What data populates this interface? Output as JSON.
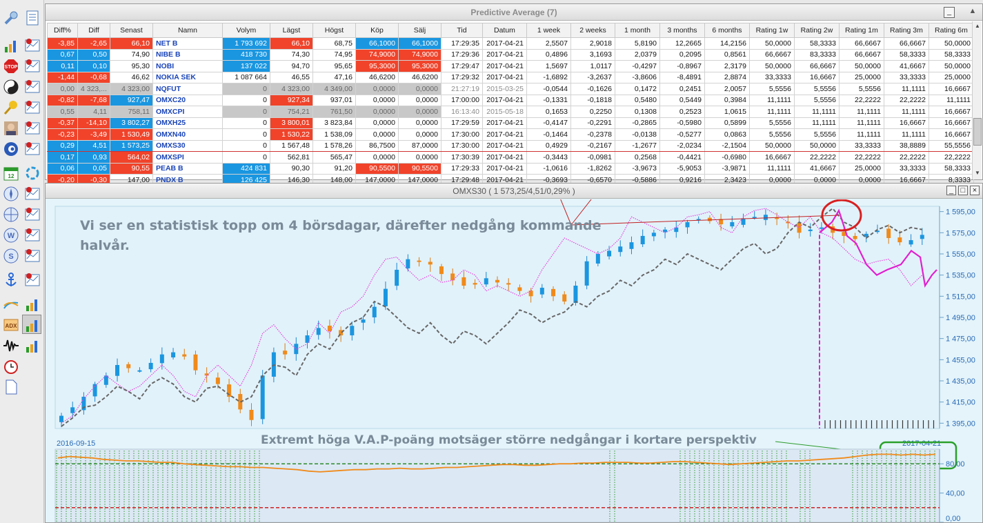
{
  "grid": {
    "title": "Predictive Average (7)",
    "columns": [
      "Diff%",
      "Diff",
      "Senast",
      "Namn",
      "Volym",
      "Lägst",
      "Högst",
      "Köp",
      "Sälj",
      "Tid",
      "Datum",
      "1 week",
      "2 weeks",
      "1 month",
      "3 months",
      "6 months",
      "Rating 1w",
      "Rating 2w",
      "Rating 1m",
      "Rating 3m",
      "Rating 6m"
    ],
    "rows": [
      [
        "-3,85",
        "-2,65",
        "66,10",
        "NET B",
        "1 793 692",
        "66,10",
        "68,75",
        "66,1000",
        "66,1000",
        "17:29:35",
        "2017-04-21",
        "2,5507",
        "2,9018",
        "5,8190",
        "12,2665",
        "14,2156",
        "50,0000",
        "58,3333",
        "66,6667",
        "66,6667",
        "50,0000"
      ],
      [
        "0,67",
        "0,50",
        "74,90",
        "NIBE B",
        "418 730",
        "74,30",
        "74,95",
        "74,9000",
        "74,9000",
        "17:29:36",
        "2017-04-21",
        "0,4896",
        "3,1693",
        "2,0379",
        "0,2095",
        "0,8561",
        "66,6667",
        "83,3333",
        "66,6667",
        "58,3333",
        "58,3333"
      ],
      [
        "0,11",
        "0,10",
        "95,30",
        "NOBI",
        "137 022",
        "94,70",
        "95,65",
        "95,3000",
        "95,3000",
        "17:29:47",
        "2017-04-21",
        "1,5697",
        "1,0117",
        "-0,4297",
        "-0,8967",
        "2,3179",
        "50,0000",
        "66,6667",
        "50,0000",
        "41,6667",
        "50,0000"
      ],
      [
        "-1,44",
        "-0,68",
        "46,62",
        "NOKIA SEK",
        "1 087 664",
        "46,55",
        "47,16",
        "46,6200",
        "46,6200",
        "17:29:32",
        "2017-04-21",
        "-1,6892",
        "-3,2637",
        "-3,8606",
        "-8,4891",
        "2,8874",
        "33,3333",
        "16,6667",
        "25,0000",
        "33,3333",
        "25,0000"
      ],
      [
        "0,00",
        "4 323,...",
        "4 323,00",
        "NQFUT",
        "0",
        "4 323,00",
        "4 349,00",
        "0,0000",
        "0,0000",
        "21:27:19",
        "2015-03-25",
        "-0,0544",
        "-0,1626",
        "0,1472",
        "0,2451",
        "2,0057",
        "5,5556",
        "5,5556",
        "5,5556",
        "11,1111",
        "16,6667"
      ],
      [
        "-0,82",
        "-7,68",
        "927,47",
        "OMXC20",
        "0",
        "927,34",
        "937,01",
        "0,0000",
        "0,0000",
        "17:00:00",
        "2017-04-21",
        "-0,1331",
        "-0,1818",
        "0,5480",
        "0,5449",
        "0,3984",
        "11,1111",
        "5,5556",
        "22,2222",
        "22,2222",
        "11,1111"
      ],
      [
        "0,55",
        "4,11",
        "758,11",
        "OMXCPI",
        "0",
        "754,21",
        "761,50",
        "0,0000",
        "0,0000",
        "16:13:40",
        "2015-05-18",
        "0,1653",
        "0,2250",
        "0,1308",
        "0,2523",
        "1,0615",
        "11,1111",
        "11,1111",
        "11,1111",
        "11,1111",
        "16,6667"
      ],
      [
        "-0,37",
        "-14,10",
        "3 802,27",
        "OMXH25",
        "0",
        "3 800,01",
        "3 823,84",
        "0,0000",
        "0,0000",
        "17:29:59",
        "2017-04-21",
        "-0,4147",
        "-0,2291",
        "-0,2865",
        "-0,5980",
        "0,5899",
        "5,5556",
        "11,1111",
        "11,1111",
        "16,6667",
        "16,6667"
      ],
      [
        "-0,23",
        "-3,49",
        "1 530,49",
        "OMXN40",
        "0",
        "1 530,22",
        "1 538,09",
        "0,0000",
        "0,0000",
        "17:30:00",
        "2017-04-21",
        "-0,1464",
        "-0,2378",
        "-0,0138",
        "-0,5277",
        "0,0863",
        "5,5556",
        "5,5556",
        "11,1111",
        "11,1111",
        "16,6667"
      ],
      [
        "0,29",
        "4,51",
        "1 573,25",
        "OMXS30",
        "0",
        "1 567,48",
        "1 578,26",
        "86,7500",
        "87,0000",
        "17:30:00",
        "2017-04-21",
        "0,4929",
        "-0,2167",
        "-1,2677",
        "-2,0234",
        "-2,1504",
        "50,0000",
        "50,0000",
        "33,3333",
        "38,8889",
        "55,5556"
      ],
      [
        "0,17",
        "0,93",
        "564,02",
        "OMXSPI",
        "0",
        "562,81",
        "565,47",
        "0,0000",
        "0,0000",
        "17:30:39",
        "2017-04-21",
        "-0,3443",
        "-0,0981",
        "0,2568",
        "-0,4421",
        "-0,6980",
        "16,6667",
        "22,2222",
        "22,2222",
        "22,2222",
        "22,2222"
      ],
      [
        "0,06",
        "0,05",
        "90,55",
        "PEAB B",
        "424 831",
        "90,30",
        "91,20",
        "90,5500",
        "90,5500",
        "17:29:33",
        "2017-04-21",
        "-1,0616",
        "-1,8262",
        "-3,9673",
        "-5,9053",
        "-3,9871",
        "11,1111",
        "41,6667",
        "25,0000",
        "33,3333",
        "58,3333"
      ],
      [
        "-0,20",
        "-0,30",
        "147,00",
        "PNDX B",
        "126 425",
        "146,30",
        "148,00",
        "147,0000",
        "147,0000",
        "17:29:48",
        "2017-04-21",
        "-0,3693",
        "-0,6570",
        "-0,5886",
        "0,9216",
        "2,3423",
        "0,0000",
        "0,0000",
        "0,0000",
        "16,6667",
        "8,3333"
      ]
    ],
    "selected_row": 9
  },
  "chart": {
    "title": "OMXS30 ( 1 573,25/4,51/0,29% )",
    "annotation_top": [
      "Vi ser en statistisk topp om 4 börsdagar, därefter nedgång kommande",
      "halvår."
    ],
    "annotation_bottom": "Extremt höga V.A.P-poäng motsäger större nedgångar i kortare perspektiv",
    "date_start": "2016-09-15",
    "date_end": "2017-04-21"
  },
  "chart_data": [
    {
      "type": "candlestick",
      "series": [
        {
          "name": "OMXS30",
          "style": "candles",
          "up_color": "#1a96e0",
          "down_color": "#f08a1a"
        },
        {
          "name": "",
          "style": "dotted-line",
          "color": "#e040e0"
        },
        {
          "name": "",
          "style": "dashed-line",
          "color": "#666666"
        }
      ],
      "y_ticks": [
        "1 395,00",
        "1 415,00",
        "1 435,00",
        "1 455,00",
        "1 475,00",
        "1 495,00",
        "1 515,00",
        "1 535,00",
        "1 555,00",
        "1 575,00",
        "1 595,00"
      ],
      "ylim": [
        1390,
        1600
      ],
      "x_range": [
        "2016-09-15",
        "2017-04-21"
      ],
      "close_path": [
        1402,
        1410,
        1420,
        1432,
        1440,
        1450,
        1447,
        1445,
        1452,
        1460,
        1462,
        1458,
        1445,
        1440,
        1432,
        1420,
        1408,
        1398,
        1440,
        1462,
        1460,
        1470,
        1478,
        1485,
        1482,
        1478,
        1487,
        1493,
        1505,
        1522,
        1540,
        1550,
        1548,
        1545,
        1536,
        1530,
        1525,
        1526,
        1532,
        1528,
        1526,
        1520,
        1515,
        1523,
        1515,
        1510,
        1525,
        1548,
        1555,
        1558,
        1562,
        1566,
        1572,
        1575,
        1578,
        1580,
        1585,
        1588,
        1586,
        1583,
        1585,
        1588,
        1590,
        1592,
        1588,
        1584,
        1575,
        1578,
        1580,
        1575,
        1572,
        1569,
        1574,
        1577,
        1570,
        1566,
        1568,
        1573
      ],
      "magenta_path": [
        1395,
        1402,
        1418,
        1430,
        1440,
        1432,
        1425,
        1430,
        1440,
        1450,
        1440,
        1425,
        1420,
        1440,
        1450,
        1440,
        1430,
        1450,
        1480,
        1488,
        1475,
        1465,
        1470,
        1490,
        1480,
        1500,
        1505,
        1515,
        1535,
        1550,
        1552,
        1540,
        1530,
        1535,
        1528,
        1530,
        1540,
        1535,
        1520,
        1525,
        1520,
        1515,
        1520,
        1540,
        1555,
        1570,
        1565,
        1560,
        1555,
        1560,
        1570,
        1590,
        1585,
        1580,
        1575,
        1580,
        1590,
        1592,
        1595,
        1580,
        1575,
        1590,
        1596,
        1598,
        1592,
        1585,
        1580,
        1590,
        1575,
        1570,
        1560,
        1550,
        1545,
        1548,
        1550,
        1540,
        1525,
        1535
      ],
      "grey_path": [
        1392,
        1400,
        1410,
        1412,
        1420,
        1430,
        1425,
        1418,
        1432,
        1438,
        1432,
        1420,
        1415,
        1428,
        1430,
        1422,
        1415,
        1420,
        1440,
        1450,
        1448,
        1440,
        1460,
        1470,
        1465,
        1480,
        1490,
        1495,
        1510,
        1505,
        1495,
        1485,
        1480,
        1490,
        1478,
        1470,
        1482,
        1478,
        1470,
        1480,
        1490,
        1502,
        1498,
        1490,
        1496,
        1500,
        1510,
        1505,
        1515,
        1520,
        1530,
        1525,
        1535,
        1540,
        1550,
        1545,
        1555,
        1550,
        1545,
        1540,
        1550,
        1560,
        1565,
        1555,
        1560,
        1575,
        1585,
        1580,
        1590,
        1598,
        1585,
        1580,
        1570,
        1578,
        1582,
        1575,
        1580,
        1578
      ],
      "forecast_value": 1584.0
    },
    {
      "type": "line",
      "series": [
        {
          "name": "",
          "color": "#f08a1a"
        }
      ],
      "y_ticks": [
        "0,00",
        "40,00",
        "80,00"
      ],
      "ylim": [
        0,
        100
      ],
      "reference_lines": [
        {
          "value": 80,
          "color": "#2a8a2a"
        },
        {
          "value": 20,
          "color": "#d02020"
        }
      ],
      "values": [
        88,
        90,
        89,
        88,
        86,
        85,
        84,
        84,
        83,
        82,
        82,
        80,
        79,
        78,
        77,
        76,
        76,
        75,
        75,
        74,
        73,
        72,
        70,
        69,
        70,
        71,
        72,
        72,
        73,
        73,
        74,
        73,
        73,
        74,
        75,
        75,
        76,
        77,
        78,
        79,
        79,
        78,
        78,
        79,
        80,
        80,
        81,
        81,
        82,
        82,
        82,
        81,
        81,
        82,
        83,
        83,
        82,
        81,
        80,
        79,
        80,
        81,
        82,
        83,
        84,
        84,
        85,
        86,
        87,
        88,
        90,
        92,
        93,
        93,
        92,
        93,
        92,
        93
      ]
    }
  ]
}
